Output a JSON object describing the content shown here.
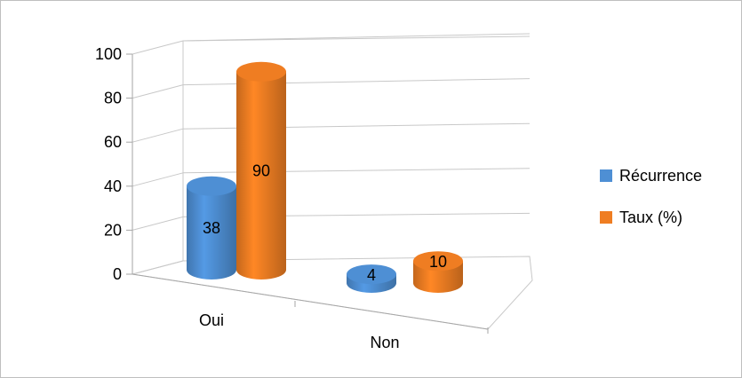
{
  "chart_data": {
    "type": "bar",
    "style": "3d-cylinder",
    "categories": [
      "Oui",
      "Non"
    ],
    "series": [
      {
        "name": "Récurrence",
        "values": [
          38,
          4
        ],
        "color": "#4e8fd4"
      },
      {
        "name": "Taux (%)",
        "values": [
          90,
          10
        ],
        "color": "#ef7d22"
      }
    ],
    "ylim": [
      0,
      100
    ],
    "yticks": [
      0,
      20,
      40,
      60,
      80,
      100
    ],
    "grid": true,
    "legend_position": "right",
    "data_labels": true
  }
}
